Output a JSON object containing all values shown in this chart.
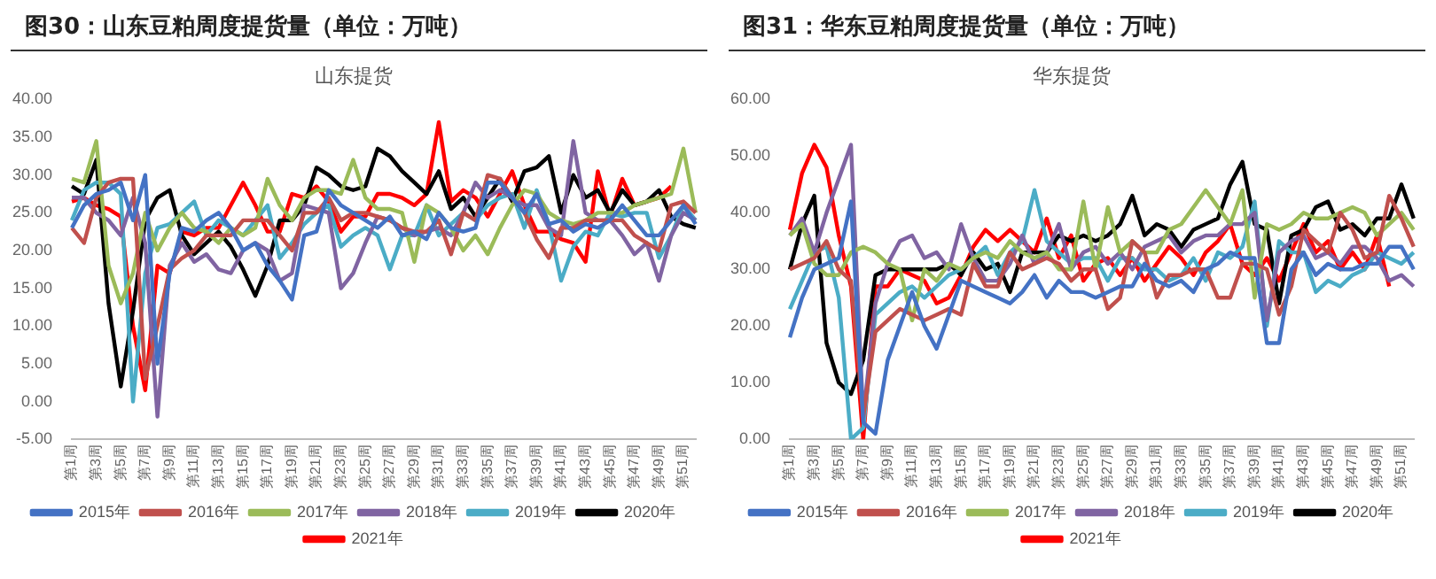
{
  "chart_data": [
    {
      "type": "line",
      "title": "图30：山东豆粕周度提货量（单位：万吨）",
      "subtitle": "山东提货",
      "categories": [
        "第1周",
        null,
        "第3周",
        null,
        "第5周",
        null,
        "第7周",
        null,
        "第9周",
        null,
        "第11周",
        null,
        "第13周",
        null,
        "第15周",
        null,
        "第17周",
        null,
        "第19周",
        null,
        "第21周",
        null,
        "第23周",
        null,
        "第25周",
        null,
        "第27周",
        null,
        "第29周",
        null,
        "第31周",
        null,
        "第33周",
        null,
        "第35周",
        null,
        "第37周",
        null,
        "第39周",
        null,
        "第41周",
        null,
        "第43周",
        null,
        "第45周",
        null,
        "第47周",
        null,
        "第49周",
        null,
        "第51周",
        null
      ],
      "series": [
        {
          "name": "2015年",
          "color": "#4472c4",
          "values": [
            23,
            26,
            27.5,
            28,
            29,
            24,
            30,
            5,
            17,
            23,
            22.5,
            24,
            25,
            23,
            20,
            21,
            18,
            16,
            13.5,
            22,
            22.5,
            28,
            26,
            25,
            24,
            23,
            24.5,
            22,
            22.5,
            21.5,
            25,
            23,
            22.5,
            23,
            29,
            29,
            27,
            25,
            27.5,
            23.5,
            24,
            22.5,
            23.5,
            23,
            24,
            26,
            24,
            22,
            22,
            24,
            26,
            23.5
          ]
        },
        {
          "name": "2016年",
          "color": "#c0504d",
          "values": [
            23,
            21,
            27,
            29,
            29.5,
            29.5,
            3,
            10,
            17.5,
            19,
            20,
            22,
            22,
            22,
            24,
            24,
            24,
            22,
            20,
            25,
            25,
            27,
            24,
            25,
            25,
            24.5,
            24,
            23,
            22.5,
            22.5,
            24,
            19.5,
            25,
            24,
            30,
            29.5,
            27,
            25,
            21.5,
            19,
            23,
            23,
            24,
            24,
            24,
            24,
            22,
            21,
            20,
            26,
            26.5,
            25
          ]
        },
        {
          "name": "2017年",
          "color": "#9bbb59",
          "values": [
            29.5,
            29,
            34.5,
            18,
            13,
            17,
            25,
            20,
            23,
            25,
            23,
            22.5,
            21,
            23,
            22,
            23,
            29.5,
            26,
            24,
            27,
            28,
            28,
            27.5,
            32,
            27,
            25.5,
            25.5,
            25,
            18.5,
            26,
            25,
            23,
            20,
            22,
            19.5,
            23,
            26,
            28,
            27.5,
            25,
            24,
            23.5,
            24,
            25,
            25,
            25,
            26,
            26.5,
            27,
            27.5,
            33.5,
            25
          ]
        },
        {
          "name": "2018年",
          "color": "#8064a2",
          "values": [
            27,
            27,
            25,
            24,
            22,
            27,
            21,
            -2,
            18,
            21,
            18.5,
            19.5,
            17.5,
            17,
            20,
            21,
            20,
            16,
            17,
            26,
            25.5,
            25,
            15,
            17,
            21,
            24.5,
            24,
            23,
            22,
            22.5,
            23,
            22,
            25,
            29,
            27,
            28,
            27,
            26,
            26,
            23,
            22,
            34.5,
            25,
            24,
            24,
            22,
            19.5,
            21,
            16,
            22,
            25,
            24
          ]
        },
        {
          "name": "2019年",
          "color": "#4bacc6",
          "values": [
            24,
            28,
            29,
            29,
            27.5,
            0,
            17,
            23,
            23.5,
            25,
            26.5,
            22,
            24,
            23,
            22,
            24,
            26,
            19,
            21,
            23.5,
            25,
            26,
            20.5,
            22,
            23,
            22,
            17.5,
            22,
            22,
            26,
            22,
            23.5,
            25,
            24,
            26,
            27,
            27.5,
            23,
            28,
            23.5,
            16,
            20.5,
            22.5,
            22,
            25,
            24.5,
            25,
            25,
            19,
            22,
            26,
            24
          ]
        },
        {
          "name": "2020年",
          "color": "#000000",
          "values": [
            28.5,
            27.5,
            32,
            13,
            2,
            12,
            24,
            27,
            28,
            22,
            19.5,
            21,
            22.5,
            20.5,
            17.5,
            14,
            18,
            24,
            24,
            26,
            31,
            30,
            28.5,
            28,
            28.5,
            33.5,
            32.5,
            30.5,
            29,
            27.5,
            30.5,
            25.5,
            27,
            24.5,
            27,
            29.5,
            26.5,
            30.5,
            31,
            32.5,
            25,
            30,
            27,
            28,
            25,
            28,
            26,
            26.5,
            28,
            24.5,
            23.5,
            23
          ]
        },
        {
          "name": "2021年",
          "color": "#ff0000",
          "values": [
            26.5,
            27,
            26,
            25.5,
            24.5,
            10,
            1.5,
            18,
            17,
            22.5,
            22,
            23,
            23,
            26,
            29,
            26,
            22.5,
            22.5,
            27.5,
            27,
            28.5,
            26.5,
            22.5,
            24.5,
            24.5,
            27.5,
            27.5,
            27,
            26,
            27.5,
            37,
            26.5,
            28,
            27,
            24.5,
            27.5,
            30.5,
            26,
            22.5,
            22.5,
            21.5,
            21,
            18.5,
            30.5,
            24.5,
            29.5,
            26,
            26.5,
            27,
            28.5,
            null,
            null
          ]
        }
      ],
      "ylim": [
        -5,
        40
      ],
      "yticks": [
        {
          "value": -5,
          "label": "-5.00"
        },
        {
          "value": 0,
          "label": "0.00"
        },
        {
          "value": 5,
          "label": "5.00"
        },
        {
          "value": 10,
          "label": "10.00"
        },
        {
          "value": 15,
          "label": "15.00"
        },
        {
          "value": 20,
          "label": "20.00"
        },
        {
          "value": 25,
          "label": "25.00"
        },
        {
          "value": 30,
          "label": "30.00"
        },
        {
          "value": 35,
          "label": "35.00"
        },
        {
          "value": 40,
          "label": "40.00"
        }
      ],
      "legend": "bottom"
    },
    {
      "type": "line",
      "title": "图31：华东豆粕周度提货量（单位：万吨）",
      "subtitle": "华东提货",
      "categories": [
        "第1周",
        null,
        "第3周",
        null,
        "第5周",
        null,
        "第7周",
        null,
        "第9周",
        null,
        "第11周",
        null,
        "第13周",
        null,
        "第15周",
        null,
        "第17周",
        null,
        "第19周",
        null,
        "第21周",
        null,
        "第23周",
        null,
        "第25周",
        null,
        "第27周",
        null,
        "第29周",
        null,
        "第31周",
        null,
        "第33周",
        null,
        "第35周",
        null,
        "第37周",
        null,
        "第39周",
        null,
        "第41周",
        null,
        "第43周",
        null,
        "第45周",
        null,
        "第47周",
        null,
        "第49周",
        null,
        "第51周",
        null
      ],
      "series": [
        {
          "name": "2015年",
          "color": "#4472c4",
          "values": [
            18,
            25,
            30,
            31,
            32,
            42,
            3,
            1,
            14,
            20,
            26,
            20,
            16,
            22,
            28,
            27,
            26,
            25,
            24,
            26,
            29,
            25,
            28,
            26,
            26,
            25,
            26,
            27,
            27,
            31,
            28,
            27,
            28,
            26,
            30,
            31,
            33,
            32,
            32,
            17,
            17,
            30,
            33,
            29,
            31,
            30,
            30,
            31,
            31,
            34,
            34,
            30
          ]
        },
        {
          "name": "2016年",
          "color": "#c0504d",
          "values": [
            30,
            31,
            32,
            35,
            30,
            28,
            4,
            19,
            21,
            23,
            22,
            21,
            22,
            23,
            22,
            31,
            27,
            27,
            33,
            30,
            31,
            32,
            31,
            28,
            30,
            30,
            23,
            25,
            35,
            33,
            25,
            29,
            29,
            30,
            30,
            25,
            25,
            31,
            31,
            30,
            22,
            27,
            37,
            35,
            33,
            40,
            37,
            32,
            33,
            43,
            39,
            34
          ]
        },
        {
          "name": "2017年",
          "color": "#9bbb59",
          "values": [
            36,
            38,
            31,
            29,
            29,
            33,
            34,
            33,
            31,
            30,
            21,
            30,
            28,
            31,
            30,
            32,
            33,
            32,
            35,
            33,
            32,
            33,
            30,
            30,
            42,
            30,
            41,
            33,
            35,
            33,
            33,
            37,
            38,
            41,
            44,
            41,
            38,
            44,
            25,
            38,
            37,
            38,
            40,
            39,
            39,
            40,
            41,
            40,
            36,
            38,
            40,
            37
          ]
        },
        {
          "name": "2018年",
          "color": "#8064a2",
          "values": [
            36,
            39,
            33,
            40,
            46,
            52,
            4,
            24,
            31,
            35,
            36,
            32,
            33,
            30,
            38,
            32,
            28,
            28,
            31,
            36,
            31,
            33,
            38,
            30,
            33,
            34,
            31,
            33,
            30,
            34,
            35,
            36,
            33,
            35,
            36,
            36,
            38,
            38,
            40,
            21,
            33,
            35,
            36,
            32,
            33,
            31,
            34,
            34,
            32,
            28,
            29,
            27
          ]
        },
        {
          "name": "2019年",
          "color": "#4bacc6",
          "values": [
            23,
            28,
            33,
            34,
            25,
            0,
            2,
            22,
            24,
            26,
            27,
            25,
            27,
            29,
            30,
            32,
            34,
            29,
            33,
            35,
            44,
            35,
            33,
            31,
            32,
            32,
            28,
            32,
            32,
            30,
            30,
            28,
            29,
            32,
            28,
            33,
            32,
            34,
            42,
            20,
            35,
            33,
            33,
            26,
            28,
            27,
            29,
            30,
            33,
            32,
            31,
            33
          ]
        },
        {
          "name": "2020年",
          "color": "#000000",
          "values": [
            30,
            38,
            43,
            17,
            10,
            8,
            14,
            29,
            30,
            30,
            30,
            30,
            30,
            31,
            29,
            33,
            30,
            31,
            26,
            33,
            33,
            33,
            36,
            35,
            36,
            35,
            36,
            38,
            43,
            36,
            38,
            37,
            34,
            37,
            38,
            39,
            45,
            49,
            38,
            37,
            24,
            36,
            37,
            41,
            42,
            37,
            38,
            36,
            39,
            39,
            45,
            39
          ]
        },
        {
          "name": "2021年",
          "color": "#ff0000",
          "values": [
            37,
            47,
            52,
            48,
            36,
            27,
            0,
            27,
            27,
            30,
            29,
            28,
            24,
            25,
            29,
            34,
            37,
            35,
            37,
            35,
            33,
            39,
            32,
            36,
            28,
            31,
            32,
            29,
            32,
            28,
            31,
            34,
            32,
            29,
            33,
            35,
            38,
            31,
            29,
            32,
            28,
            33,
            38,
            33,
            35,
            30,
            33,
            30,
            36,
            27,
            null,
            null
          ]
        }
      ],
      "ylim": [
        0,
        60
      ],
      "yticks": [
        {
          "value": 0,
          "label": "0.00"
        },
        {
          "value": 10,
          "label": "10.00"
        },
        {
          "value": 20,
          "label": "20.00"
        },
        {
          "value": 30,
          "label": "30.00"
        },
        {
          "value": 40,
          "label": "40.00"
        },
        {
          "value": 50,
          "label": "50.00"
        },
        {
          "value": 60,
          "label": "60.00"
        }
      ],
      "legend": "bottom"
    }
  ]
}
